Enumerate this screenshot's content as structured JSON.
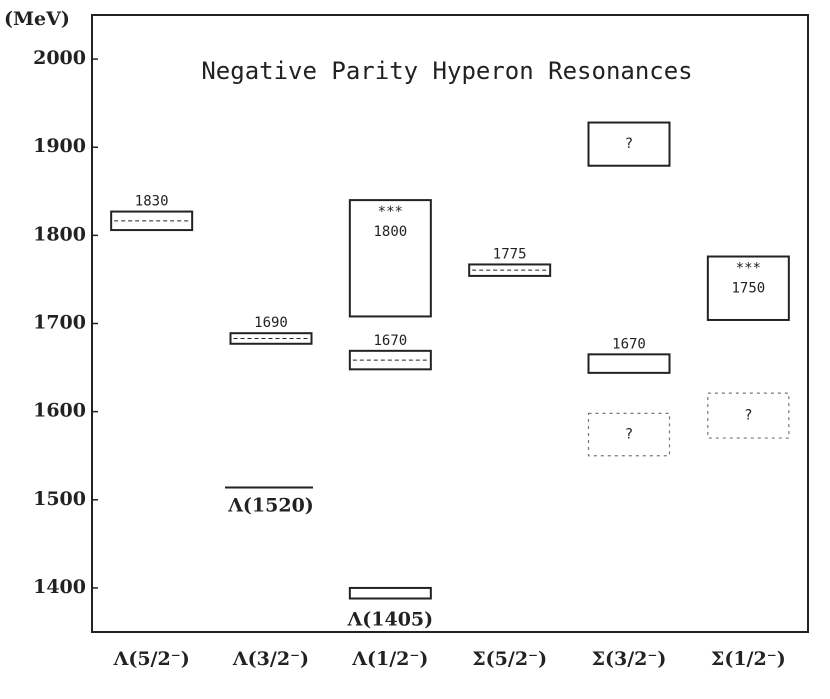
{
  "chart_data": {
    "type": "level",
    "title": "Negative Parity Hyperon Resonances",
    "y_label": "(MeV)",
    "ylim": [
      1350,
      2050
    ],
    "yticks": [
      1400,
      1500,
      1600,
      1700,
      1800,
      1900,
      2000
    ],
    "color": "#222222",
    "columns": [
      {
        "name": "Λ(5/2⁻)",
        "levels": [
          {
            "low": 1806,
            "high": 1827,
            "label": "1830",
            "label_position": "above",
            "center_line": true
          }
        ]
      },
      {
        "name": "Λ(3/2⁻)",
        "levels": [
          {
            "low": 1677,
            "high": 1689,
            "label": "1690",
            "label_position": "above",
            "center_line": true
          },
          {
            "value": 1514,
            "label": "Λ(1520)",
            "label_position": "below"
          }
        ]
      },
      {
        "name": "Λ(1/2⁻)",
        "levels": [
          {
            "low": 1708,
            "high": 1840,
            "stars": "***",
            "label": "1800",
            "label_position": "inside"
          },
          {
            "low": 1648,
            "high": 1669,
            "label": "1670",
            "label_position": "above",
            "center_line": true
          },
          {
            "low": 1388,
            "high": 1400,
            "label": "Λ(1405)",
            "label_position": "below"
          }
        ]
      },
      {
        "name": "Σ(5/2⁻)",
        "levels": [
          {
            "low": 1754,
            "high": 1767,
            "label": "1775",
            "label_position": "above",
            "center_line": true
          }
        ]
      },
      {
        "name": "Σ(3/2⁻)",
        "levels": [
          {
            "low": 1879,
            "high": 1928,
            "label": "?",
            "label_position": "inside"
          },
          {
            "low": 1644,
            "high": 1665,
            "label": "1670",
            "label_position": "above"
          },
          {
            "low": 1550,
            "high": 1598,
            "label": "?",
            "label_position": "inside",
            "border": "dotted"
          }
        ]
      },
      {
        "name": "Σ(1/2⁻)",
        "levels": [
          {
            "low": 1704,
            "high": 1776,
            "stars": "***",
            "label": "1750",
            "label_position": "inside"
          },
          {
            "low": 1570,
            "high": 1621,
            "label": "?",
            "label_position": "inside",
            "border": "dotted"
          }
        ]
      }
    ]
  }
}
